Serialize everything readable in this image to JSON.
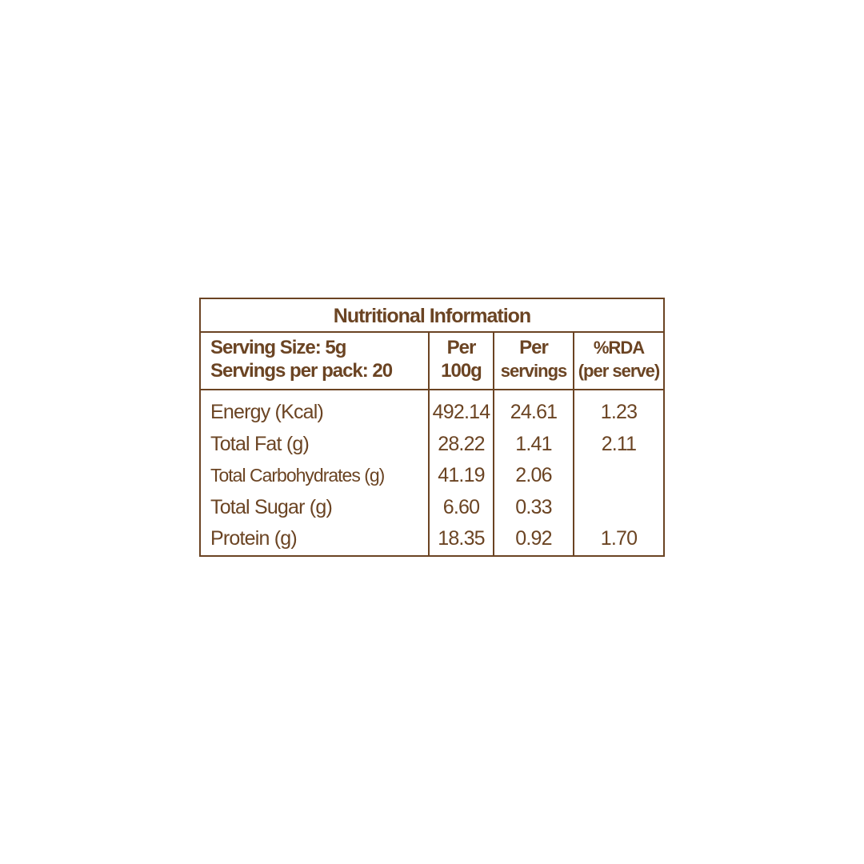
{
  "title": "Nutritional Information",
  "header": {
    "serving_size": "Serving Size: 5g",
    "servings_per_pack": "Servings per pack: 20",
    "col1_line1": "Per",
    "col1_line2": "100g",
    "col2_line1": "Per",
    "col2_line2": "servings",
    "col3_line1": "%RDA",
    "col3_line2": "(per serve)"
  },
  "rows": [
    {
      "nutrient": "Energy (Kcal)",
      "per_100g": "492.14",
      "per_serving": "24.61",
      "rda": "1.23"
    },
    {
      "nutrient": "Total Fat (g)",
      "per_100g": "28.22",
      "per_serving": "1.41",
      "rda": "2.11"
    },
    {
      "nutrient": "Total Carbohydrates (g)",
      "per_100g": "41.19",
      "per_serving": "2.06",
      "rda": ""
    },
    {
      "nutrient": "Total Sugar (g)",
      "per_100g": "6.60",
      "per_serving": "0.33",
      "rda": ""
    },
    {
      "nutrient": "Protein (g)",
      "per_100g": "18.35",
      "per_serving": "0.92",
      "rda": "1.70"
    }
  ],
  "colors": {
    "text": "#6b4423",
    "border": "#6b4423",
    "background": "#ffffff"
  }
}
